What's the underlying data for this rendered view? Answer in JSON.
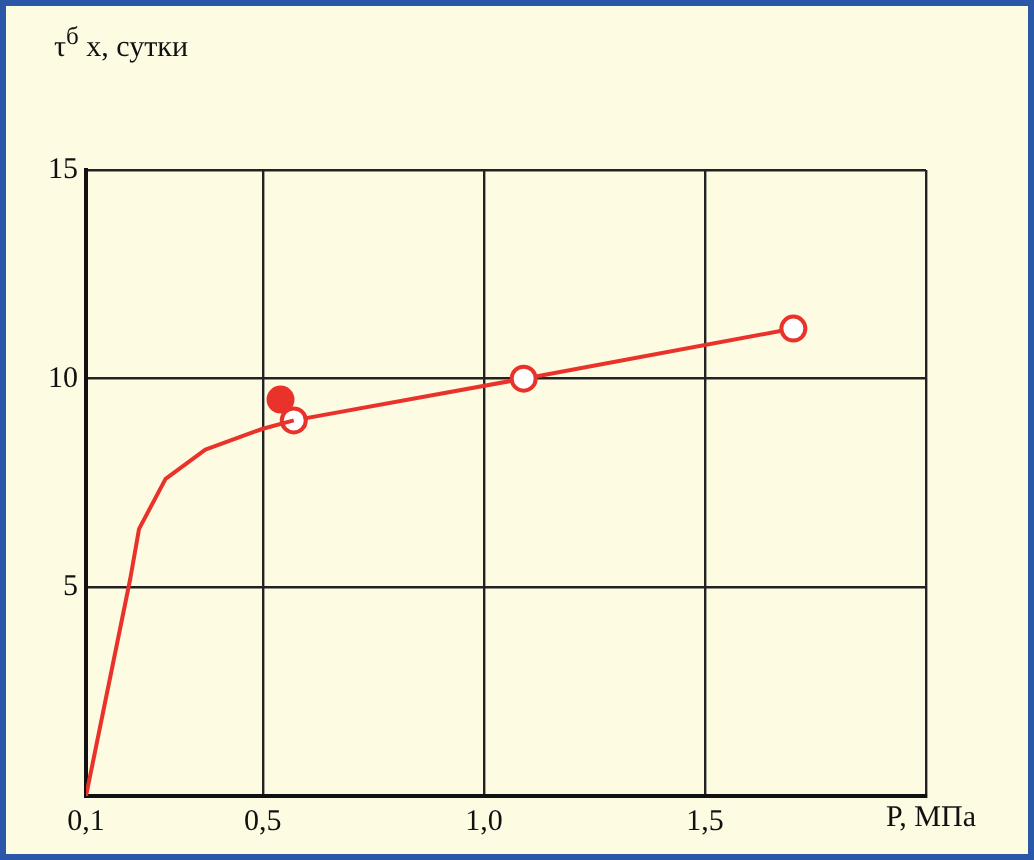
{
  "chart_data": {
    "type": "line",
    "xlabel": "P, МПа",
    "ylabel": "τ$^{б}$ x, сутки",
    "xlim": [
      0.1,
      2.0
    ],
    "xticks": [
      {
        "value": 0.1,
        "label": "0,1"
      },
      {
        "value": 0.5,
        "label": "0,5"
      },
      {
        "value": 1.0,
        "label": "1,0"
      },
      {
        "value": 1.5,
        "label": "1,5"
      },
      {
        "value": 2.0,
        "label": null
      }
    ],
    "ylim": [
      0,
      15
    ],
    "yticks": [
      {
        "value": 0,
        "label": null
      },
      5,
      10,
      15
    ],
    "grid": true,
    "legend": false,
    "series": [
      {
        "marker": "none",
        "color": "#e8322a",
        "x": [
          0.1,
          0.2,
          0.22,
          0.28,
          0.37,
          0.5,
          0.57
        ],
        "values": [
          0,
          5.2,
          6.4,
          7.6,
          8.3,
          8.8,
          9.0
        ]
      },
      {
        "marker": "circle",
        "color": "#e8322a",
        "x": [
          0.57,
          1.09,
          1.7
        ],
        "values": [
          9.0,
          10.0,
          11.2
        ]
      },
      {
        "type": "scatter",
        "marker": "circle",
        "color": "#e8322a",
        "x": [
          0.54
        ],
        "values": [
          9.5
        ]
      }
    ]
  }
}
